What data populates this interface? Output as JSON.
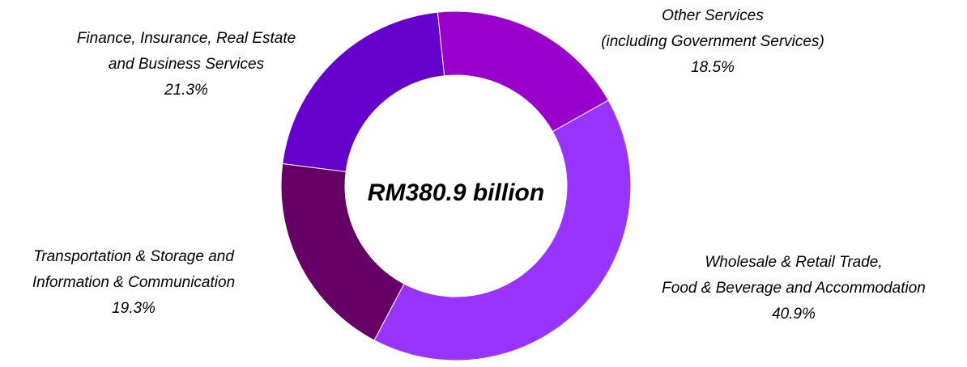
{
  "chart_data": {
    "type": "donut",
    "center_label": "RM380.9 billion",
    "categories": [
      [
        "Other Services",
        "(including Government Services)"
      ],
      [
        "Wholesale & Retail Trade,",
        "Food & Beverage and Accommodation"
      ],
      [
        "Transportation & Storage and",
        "Information & Communication"
      ],
      [
        "Finance, Insurance, Real Estate",
        "and Business Services"
      ]
    ],
    "values": [
      18.5,
      40.9,
      19.3,
      21.3
    ],
    "value_labels": [
      "18.5%",
      "40.9%",
      "19.3%",
      "21.3%"
    ],
    "colors": [
      "#9900cc",
      "#9933ff",
      "#660066",
      "#6600cc"
    ]
  }
}
